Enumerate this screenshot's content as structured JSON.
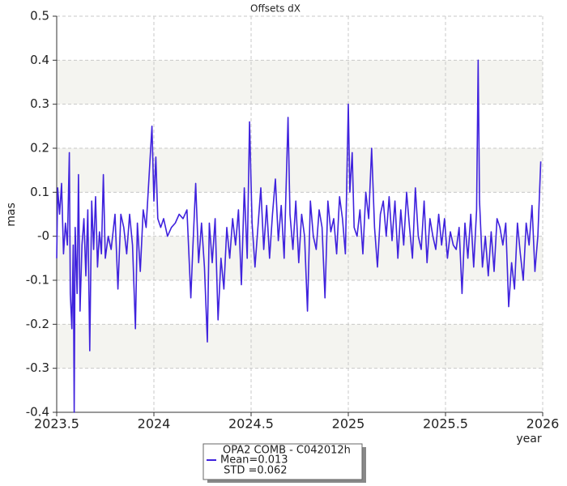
{
  "chart_data": {
    "type": "line",
    "title": "Offsets dX",
    "x_label": "year",
    "y_label": "mas",
    "xlim": [
      2023.5,
      2026
    ],
    "ylim": [
      -0.4,
      0.5
    ],
    "xticks": [
      2023.5,
      2024,
      2024.5,
      2025,
      2025.5,
      2026
    ],
    "yticks": [
      0.5,
      0.4,
      0.3,
      0.2,
      0.1,
      {
        "value": 0,
        "label": "-0"
      },
      -0.1,
      -0.2,
      -0.3,
      -0.4
    ],
    "grid": true,
    "bands": true,
    "legend": {
      "title": "OPA2 COMB - C042012h",
      "mean": "Mean=0.013",
      "std": " STD =0.062"
    },
    "series": [
      {
        "name": "OPA2 COMB - C042012h",
        "color": "#3f22dd",
        "x": [
          2023.5,
          2023.505,
          2023.515,
          2023.525,
          2023.535,
          2023.545,
          2023.555,
          2023.565,
          2023.57,
          2023.578,
          2023.585,
          2023.59,
          2023.595,
          2023.605,
          2023.612,
          2023.62,
          2023.63,
          2023.64,
          2023.65,
          2023.66,
          2023.67,
          2023.68,
          2023.69,
          2023.7,
          2023.71,
          2023.72,
          2023.73,
          2023.74,
          2023.75,
          2023.765,
          2023.78,
          2023.8,
          2023.815,
          2023.83,
          2023.845,
          2023.86,
          2023.875,
          2023.89,
          2023.905,
          2023.915,
          2023.93,
          2023.945,
          2023.96,
          2023.99,
          2024.0,
          2024.01,
          2024.02,
          2024.035,
          2024.05,
          2024.07,
          2024.09,
          2024.11,
          2024.13,
          2024.15,
          2024.17,
          2024.19,
          2024.2,
          2024.215,
          2024.23,
          2024.245,
          2024.26,
          2024.275,
          2024.285,
          2024.3,
          2024.315,
          2024.33,
          2024.345,
          2024.36,
          2024.375,
          2024.39,
          2024.405,
          2024.42,
          2024.435,
          2024.45,
          2024.465,
          2024.48,
          2024.492,
          2024.505,
          2024.52,
          2024.535,
          2024.55,
          2024.565,
          2024.58,
          2024.595,
          2024.61,
          2024.625,
          2024.64,
          2024.655,
          2024.67,
          2024.69,
          2024.7,
          2024.715,
          2024.73,
          2024.745,
          2024.76,
          2024.775,
          2024.79,
          2024.805,
          2024.82,
          2024.835,
          2024.85,
          2024.865,
          2024.88,
          2024.895,
          2024.91,
          2024.925,
          2024.94,
          2024.955,
          2024.97,
          2024.985,
          2025.0,
          2025.008,
          2025.02,
          2025.03,
          2025.045,
          2025.06,
          2025.075,
          2025.09,
          2025.105,
          2025.12,
          2025.135,
          2025.15,
          2025.165,
          2025.18,
          2025.195,
          2025.21,
          2025.225,
          2025.24,
          2025.255,
          2025.27,
          2025.285,
          2025.3,
          2025.315,
          2025.33,
          2025.345,
          2025.36,
          2025.375,
          2025.39,
          2025.405,
          2025.42,
          2025.435,
          2025.45,
          2025.465,
          2025.48,
          2025.495,
          2025.51,
          2025.525,
          2025.54,
          2025.555,
          2025.57,
          2025.585,
          2025.6,
          2025.615,
          2025.63,
          2025.645,
          2025.66,
          2025.668,
          2025.675,
          2025.69,
          2025.705,
          2025.72,
          2025.735,
          2025.75,
          2025.765,
          2025.78,
          2025.795,
          2025.81,
          2025.825,
          2025.84,
          2025.855,
          2025.87,
          2025.885,
          2025.9,
          2025.915,
          2025.93,
          2025.945,
          2025.96,
          2025.975,
          2025.99
        ],
        "values": [
          -0.05,
          0.11,
          0.05,
          0.12,
          -0.04,
          0.03,
          -0.02,
          0.19,
          -0.13,
          -0.21,
          -0.02,
          -0.4,
          0.02,
          -0.13,
          0.14,
          -0.17,
          -0.02,
          0.04,
          -0.09,
          0.06,
          -0.26,
          0.08,
          -0.03,
          0.09,
          -0.07,
          0.01,
          -0.04,
          0.14,
          -0.05,
          0.0,
          -0.03,
          0.05,
          -0.12,
          0.05,
          0.02,
          -0.04,
          0.05,
          -0.02,
          -0.21,
          0.03,
          -0.08,
          0.06,
          0.02,
          0.25,
          0.08,
          0.18,
          0.04,
          0.02,
          0.04,
          0.0,
          0.02,
          0.03,
          0.05,
          0.04,
          0.06,
          -0.14,
          -0.03,
          0.12,
          -0.06,
          0.03,
          -0.07,
          -0.24,
          0.03,
          -0.06,
          0.04,
          -0.19,
          -0.05,
          -0.12,
          0.02,
          -0.05,
          0.04,
          -0.02,
          0.06,
          -0.11,
          0.11,
          -0.05,
          0.26,
          0.03,
          -0.07,
          0.02,
          0.11,
          -0.03,
          0.07,
          -0.05,
          0.05,
          0.13,
          -0.01,
          0.07,
          -0.05,
          0.27,
          0.05,
          -0.03,
          0.08,
          -0.06,
          0.05,
          0.0,
          -0.17,
          0.08,
          0.0,
          -0.03,
          0.06,
          0.02,
          -0.14,
          0.08,
          0.01,
          0.04,
          -0.04,
          0.09,
          0.04,
          -0.04,
          0.3,
          0.1,
          0.19,
          0.02,
          0.0,
          0.06,
          -0.04,
          0.1,
          0.04,
          0.2,
          0.02,
          -0.07,
          0.05,
          0.08,
          0.0,
          0.09,
          -0.01,
          0.08,
          -0.05,
          0.06,
          -0.02,
          0.1,
          0.02,
          -0.05,
          0.11,
          0.0,
          -0.03,
          0.08,
          -0.06,
          0.04,
          0.0,
          -0.03,
          0.05,
          -0.02,
          0.04,
          -0.05,
          0.01,
          -0.02,
          -0.03,
          0.02,
          -0.13,
          0.03,
          -0.05,
          0.05,
          -0.07,
          0.06,
          0.4,
          0.08,
          -0.07,
          0.0,
          -0.09,
          0.01,
          -0.08,
          0.04,
          0.02,
          -0.02,
          0.03,
          -0.16,
          -0.06,
          -0.12,
          0.03,
          -0.04,
          -0.1,
          0.03,
          -0.02,
          0.07,
          -0.08,
          0.0,
          0.17
        ]
      }
    ]
  }
}
